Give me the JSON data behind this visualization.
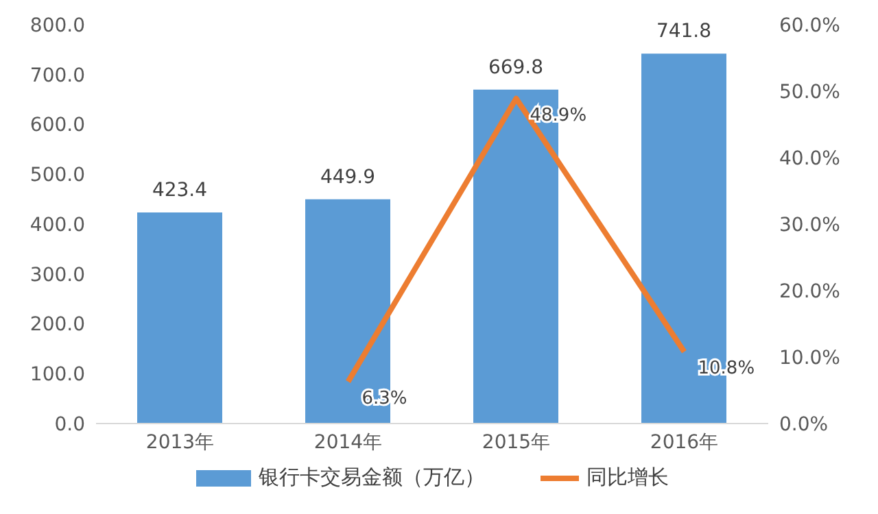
{
  "chart_data": {
    "type": "bar",
    "categories": [
      "2013年",
      "2014年",
      "2015年",
      "2016年"
    ],
    "series": [
      {
        "name": "银行卡交易金额（万亿）",
        "color": "#5b9bd5",
        "values": [
          423.4,
          449.9,
          669.8,
          741.8
        ],
        "value_labels": [
          "423.4",
          "449.9",
          "669.8",
          "741.8"
        ]
      },
      {
        "name": "同比增长",
        "type": "line",
        "axis": "y2",
        "color": "#ed7d31",
        "values": [
          null,
          6.3,
          48.9,
          10.8
        ],
        "value_labels": [
          null,
          "6.3%",
          "48.9%",
          "10.8%"
        ]
      }
    ],
    "ylim": [
      0,
      800
    ],
    "yticks": [
      {
        "value": 0,
        "label": "0.0"
      },
      {
        "value": 100,
        "label": "100.0"
      },
      {
        "value": 200,
        "label": "200.0"
      },
      {
        "value": 300,
        "label": "300.0"
      },
      {
        "value": 400,
        "label": "400.0"
      },
      {
        "value": 500,
        "label": "500.0"
      },
      {
        "value": 600,
        "label": "600.0"
      },
      {
        "value": 700,
        "label": "700.0"
      },
      {
        "value": 800,
        "label": "800.0"
      }
    ],
    "y2lim": [
      0,
      60
    ],
    "y2ticks": [
      {
        "value": 0,
        "label": "0.0%"
      },
      {
        "value": 10,
        "label": "10.0%"
      },
      {
        "value": 20,
        "label": "20.0%"
      },
      {
        "value": 30,
        "label": "30.0%"
      },
      {
        "value": 40,
        "label": "40.0%"
      },
      {
        "value": 50,
        "label": "50.0%"
      },
      {
        "value": 60,
        "label": "60.0%"
      }
    ],
    "grid": false,
    "legend": "bottom",
    "marker": "none"
  }
}
